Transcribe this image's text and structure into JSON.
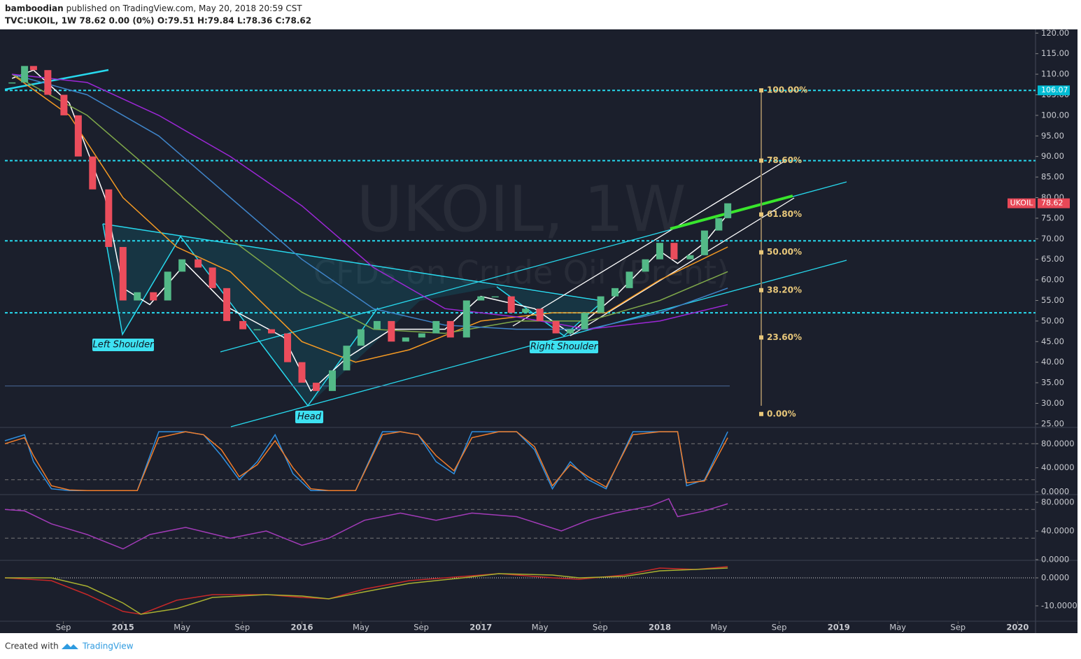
{
  "header": {
    "author": "bamboodian",
    "published": "published on TradingView.com, May 20, 2018 20:59 CST",
    "symbol_line": "TVC:UKOIL, 1W 78.62 0.00 (0%) O:79.51 H:79.84 L:78.36 C:78.62"
  },
  "watermark": {
    "symbol": "UKOIL, 1W",
    "description": "CFDs on Crude Oil (Brent)"
  },
  "annotations": [
    "Left Shoulder",
    "Head",
    "Right Shoulder"
  ],
  "footer": {
    "created": "Created with",
    "brand": "TradingView"
  },
  "chart_data": [
    {
      "type": "candlestick",
      "xlim": [
        2014.34,
        2020.1
      ],
      "xticks": [
        {
          "value": 2014.667,
          "label": "Sep"
        },
        {
          "value": 2015,
          "label": "2015"
        },
        {
          "value": 2015.33,
          "label": "May"
        },
        {
          "value": 2015.667,
          "label": "Sep"
        },
        {
          "value": 2016,
          "label": "2016"
        },
        {
          "value": 2016.33,
          "label": "May"
        },
        {
          "value": 2016.667,
          "label": "Sep"
        },
        {
          "value": 2017,
          "label": "2017"
        },
        {
          "value": 2017.33,
          "label": "May"
        },
        {
          "value": 2017.667,
          "label": "Sep"
        },
        {
          "value": 2018,
          "label": "2018"
        },
        {
          "value": 2018.33,
          "label": "May"
        },
        {
          "value": 2018.667,
          "label": "Sep"
        },
        {
          "value": 2019,
          "label": "2019"
        },
        {
          "value": 2019.33,
          "label": "May"
        },
        {
          "value": 2019.667,
          "label": "Sep"
        },
        {
          "value": 2020,
          "label": "2020"
        }
      ],
      "ylim": [
        24.3,
        120.9
      ],
      "yticks": [
        {
          "value": 25,
          "label": "25.00"
        },
        {
          "value": 30,
          "label": "30.00"
        },
        {
          "value": 35,
          "label": "35.00"
        },
        {
          "value": 40,
          "label": "40.00"
        },
        {
          "value": 45,
          "label": "45.00"
        },
        {
          "value": 50,
          "label": "50.00"
        },
        {
          "value": 55,
          "label": "55.00"
        },
        {
          "value": 60,
          "label": "60.00"
        },
        {
          "value": 65,
          "label": "65.00"
        },
        {
          "value": 70,
          "label": "70.00"
        },
        {
          "value": 75,
          "label": "75.00"
        },
        {
          "value": 80,
          "label": "80.00"
        },
        {
          "value": 85,
          "label": "85.00"
        },
        {
          "value": 90,
          "label": "90.00"
        },
        {
          "value": 95,
          "label": "95.00"
        },
        {
          "value": 100,
          "label": "100.00"
        },
        {
          "value": 105,
          "label": "105.00"
        },
        {
          "value": 110,
          "label": "110.00"
        },
        {
          "value": 115,
          "label": "115.00"
        },
        {
          "value": 120,
          "label": "120.00"
        }
      ],
      "x": [
        2014.38,
        2014.45,
        2014.5,
        2014.58,
        2014.67,
        2014.75,
        2014.83,
        2014.92,
        2015.0,
        2015.08,
        2015.17,
        2015.25,
        2015.33,
        2015.42,
        2015.5,
        2015.58,
        2015.67,
        2015.75,
        2015.83,
        2015.92,
        2016.0,
        2016.08,
        2016.17,
        2016.25,
        2016.33,
        2016.42,
        2016.5,
        2016.58,
        2016.67,
        2016.75,
        2016.83,
        2016.92,
        2017.0,
        2017.08,
        2017.17,
        2017.25,
        2017.33,
        2017.42,
        2017.5,
        2017.58,
        2017.67,
        2017.75,
        2017.83,
        2017.92,
        2018.0,
        2018.08,
        2018.17,
        2018.25,
        2018.33,
        2018.38
      ],
      "series": [
        {
          "name": "UKOIL",
          "up_color": "#53b987",
          "down_color": "#eb4d5c",
          "values": [
            108,
            112,
            111,
            105,
            100,
            90,
            82,
            68,
            55,
            57,
            55,
            62,
            65,
            63,
            58,
            50,
            48,
            48,
            47,
            40,
            35,
            33,
            38,
            44,
            48,
            50,
            45,
            46,
            47,
            50,
            46,
            55,
            56,
            56,
            52,
            53,
            50,
            47,
            48,
            52,
            56,
            58,
            62,
            65,
            69,
            65,
            66,
            72,
            75,
            78.62
          ]
        }
      ],
      "overlays": [
        {
          "color": "#ffffff",
          "x": [
            2014.38,
            2014.5,
            2014.7,
            2014.9,
            2015.0,
            2015.15,
            2015.35,
            2015.6,
            2015.9,
            2016.05,
            2016.25,
            2016.5,
            2016.8,
            2017.0,
            2017.3,
            2017.5,
            2017.75,
            2018.0,
            2018.1,
            2018.25,
            2018.38
          ],
          "values": [
            109,
            111,
            103,
            80,
            58,
            54,
            64,
            53,
            46,
            33,
            41,
            48,
            48,
            56,
            53,
            47,
            56,
            67,
            64,
            69,
            76
          ]
        },
        {
          "color": "#f59a23",
          "x": [
            2014.38,
            2014.7,
            2015.0,
            2015.3,
            2015.6,
            2016.0,
            2016.3,
            2016.6,
            2017.0,
            2017.4,
            2017.7,
            2018.0,
            2018.38
          ],
          "values": [
            110,
            100,
            80,
            68,
            62,
            45,
            40,
            43,
            50,
            52,
            52,
            60,
            68
          ]
        },
        {
          "color": "#7fa84a",
          "x": [
            2014.38,
            2014.8,
            2015.2,
            2015.6,
            2016.0,
            2016.4,
            2016.8,
            2017.2,
            2017.6,
            2018.0,
            2018.38
          ],
          "values": [
            110,
            100,
            85,
            70,
            57,
            48,
            47,
            50,
            50,
            55,
            62
          ]
        },
        {
          "color": "#3f84c8",
          "x": [
            2014.38,
            2014.8,
            2015.2,
            2015.6,
            2016.0,
            2016.4,
            2016.8,
            2017.2,
            2017.6,
            2018.0,
            2018.38
          ],
          "values": [
            110,
            105,
            95,
            80,
            65,
            53,
            49,
            48,
            48,
            52,
            58
          ]
        },
        {
          "color": "#9c27d6",
          "x": [
            2014.38,
            2014.8,
            2015.2,
            2015.6,
            2016.0,
            2016.4,
            2016.8,
            2017.2,
            2017.6,
            2018.0,
            2018.38
          ],
          "values": [
            110,
            108,
            100,
            90,
            78,
            63,
            53,
            51,
            48,
            50,
            54
          ]
        }
      ],
      "hlines": [
        {
          "value": 106.07,
          "color": "#27d9ee",
          "dashed": true
        },
        {
          "value": 89,
          "color": "#27d9ee",
          "dashed": true
        },
        {
          "value": 69.5,
          "color": "#27d9ee",
          "dashed": true
        },
        {
          "value": 52,
          "color": "#27d9ee",
          "dashed": true
        },
        {
          "value": 34.2,
          "color": "#4a6a9a",
          "dashed": false
        }
      ],
      "fib": {
        "color": "#e8c77a",
        "levels": [
          {
            "value": 106.07,
            "label": "100.00%"
          },
          {
            "value": 89,
            "label": "78.60%"
          },
          {
            "value": 75.9,
            "label": "61.80%"
          },
          {
            "value": 66.7,
            "label": "50.00%"
          },
          {
            "value": 57.5,
            "label": "38.20%"
          },
          {
            "value": 46,
            "label": "23.60%"
          },
          {
            "value": 27.4,
            "label": "0.00%"
          }
        ]
      },
      "price_tags": [
        {
          "value": 106.07,
          "color": "#00bcd4"
        },
        {
          "name": "UKOIL",
          "value": 78.62,
          "color": "#e84857"
        }
      ]
    },
    {
      "type": "line",
      "ylim": [
        -3.5,
        105.9
      ],
      "yticks": [
        {
          "value": 0,
          "label": "0.0000"
        },
        {
          "value": 40,
          "label": "40.0000"
        },
        {
          "value": 80,
          "label": "80.0000"
        }
      ],
      "bands": [
        20,
        80
      ],
      "x": [
        2014.34,
        2014.45,
        2014.5,
        2014.6,
        2014.7,
        2014.8,
        2014.95,
        2015.08,
        2015.2,
        2015.35,
        2015.45,
        2015.55,
        2015.65,
        2015.75,
        2015.85,
        2015.95,
        2016.05,
        2016.15,
        2016.3,
        2016.45,
        2016.55,
        2016.65,
        2016.75,
        2016.85,
        2016.95,
        2017.1,
        2017.2,
        2017.3,
        2017.4,
        2017.5,
        2017.6,
        2017.7,
        2017.85,
        2018.0,
        2018.1,
        2018.15,
        2018.25,
        2018.38
      ],
      "series": [
        {
          "color": "#2f8fe0",
          "values": [
            85,
            95,
            50,
            5,
            2,
            2,
            2,
            2,
            100,
            100,
            95,
            60,
            20,
            50,
            95,
            30,
            2,
            2,
            2,
            100,
            100,
            95,
            50,
            30,
            100,
            100,
            100,
            70,
            5,
            50,
            20,
            5,
            100,
            100,
            100,
            10,
            20,
            100
          ]
        },
        {
          "color": "#f07c2a",
          "values": [
            80,
            90,
            60,
            10,
            3,
            2,
            2,
            2,
            90,
            100,
            95,
            70,
            25,
            45,
            85,
            40,
            5,
            2,
            2,
            95,
            100,
            95,
            60,
            35,
            90,
            100,
            100,
            75,
            10,
            45,
            25,
            8,
            95,
            100,
            100,
            15,
            18,
            90
          ]
        }
      ]
    },
    {
      "type": "line",
      "ylim": [
        0,
        89.8
      ],
      "yticks": [
        {
          "value": 0,
          "label": "0.0000"
        },
        {
          "value": 40,
          "label": "40.0000"
        },
        {
          "value": 80,
          "label": "80.0000"
        }
      ],
      "bands": [
        30,
        70
      ],
      "x": [
        2014.34,
        2014.45,
        2014.6,
        2014.8,
        2015.0,
        2015.15,
        2015.35,
        2015.6,
        2015.8,
        2016.0,
        2016.15,
        2016.35,
        2016.55,
        2016.75,
        2016.95,
        2017.2,
        2017.45,
        2017.6,
        2017.75,
        2017.95,
        2018.05,
        2018.1,
        2018.25,
        2018.38
      ],
      "series": [
        {
          "color": "#a23bb8",
          "values": [
            70,
            68,
            50,
            35,
            15,
            35,
            45,
            30,
            40,
            20,
            30,
            55,
            65,
            55,
            65,
            60,
            40,
            55,
            65,
            75,
            85,
            60,
            68,
            78
          ]
        }
      ]
    },
    {
      "type": "line",
      "ylim": [
        -15.25,
        6
      ],
      "yticks": [
        {
          "value": -10,
          "label": "-10.0000"
        },
        {
          "value": 0,
          "label": "0.0000"
        }
      ],
      "zero_line": true,
      "x": [
        2014.34,
        2014.6,
        2014.8,
        2015.0,
        2015.1,
        2015.3,
        2015.5,
        2015.8,
        2016.0,
        2016.15,
        2016.35,
        2016.6,
        2016.9,
        2017.1,
        2017.4,
        2017.55,
        2017.8,
        2018.0,
        2018.2,
        2018.38
      ],
      "series": [
        {
          "color": "#c62828",
          "values": [
            0,
            -1,
            -6,
            -12,
            -13,
            -8,
            -6,
            -6,
            -7,
            -7.5,
            -4,
            -1,
            0.5,
            1.5,
            0,
            -0.5,
            1,
            3.5,
            3,
            4
          ]
        },
        {
          "color": "#a8b030",
          "values": [
            0,
            0,
            -3,
            -9,
            -13,
            -11,
            -7,
            -6,
            -6.5,
            -7.5,
            -5,
            -2,
            0,
            1.5,
            1,
            0,
            0.5,
            2.5,
            3,
            3.5
          ]
        }
      ]
    }
  ]
}
